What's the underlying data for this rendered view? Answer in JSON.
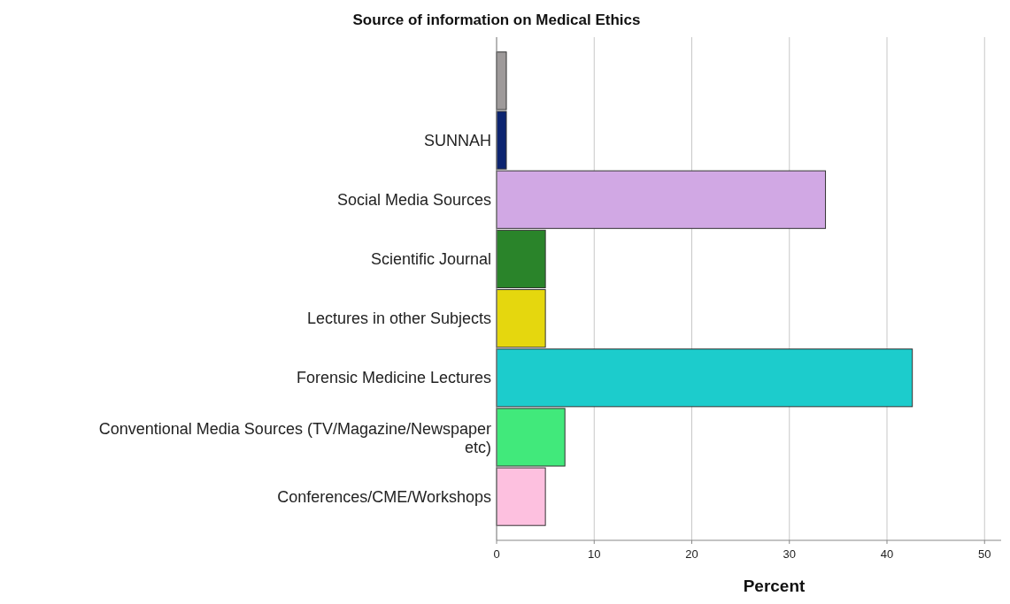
{
  "chart_data": {
    "type": "bar",
    "orientation": "horizontal",
    "title": "Source of information on Medical Ethics",
    "xlabel": "Percent",
    "categories": [
      null,
      "SUNNAH",
      "Social Media Sources",
      "Scientific Journal",
      "Lectures in other Subjects",
      "Forensic Medicine Lectures",
      "Conventional Media Sources (TV/Magazine/Newspaper etc)",
      "Conferences/CME/Workshops"
    ],
    "values": [
      1.0,
      1.0,
      33.7,
      5.0,
      5.0,
      42.6,
      7.0,
      5.0
    ],
    "colors": [
      "#9e9a9a",
      "#0c2470",
      "#d1a8e4",
      "#2a842a",
      "#e5d70e",
      "#1ccccc",
      "#41e97b",
      "#fdc0df"
    ],
    "xlim": [
      0,
      51.7
    ],
    "xticks": [
      0,
      10,
      20,
      30,
      40,
      50
    ],
    "grid": "x"
  }
}
